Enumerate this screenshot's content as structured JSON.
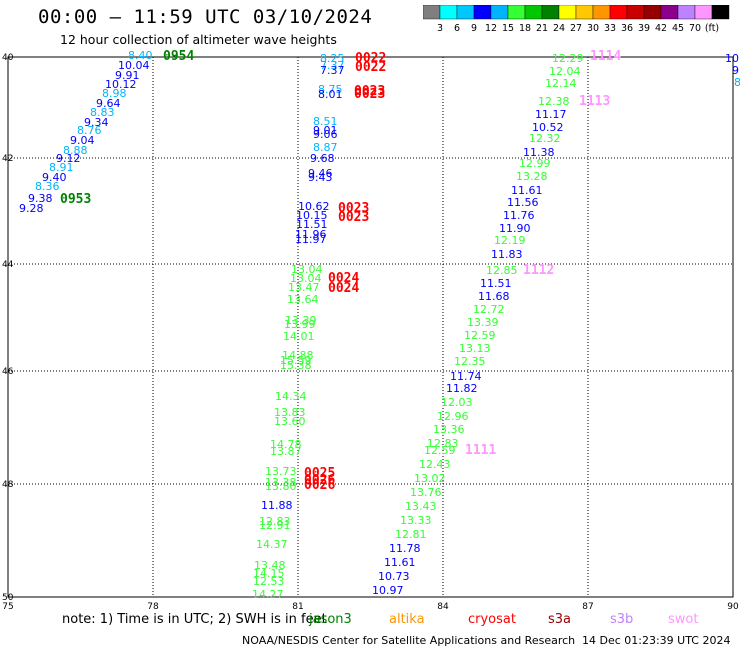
{
  "header": {
    "title": "00:00 – 11:59 UTC 03/10/2024",
    "subtitle": "12 hour collection of altimeter wave heights"
  },
  "colorbar": {
    "colors": [
      "#7f7f7f",
      "#00ffff",
      "#00c8ff",
      "#0000ff",
      "#00b4ff",
      "#33ff33",
      "#00c800",
      "#008200",
      "#ffff00",
      "#ffc800",
      "#ff9600",
      "#ff0000",
      "#c80000",
      "#960000",
      "#8c008c",
      "#be82ff",
      "#ff96ff",
      "#000000"
    ],
    "labels": [
      "3",
      "6",
      "9",
      "12",
      "15",
      "18",
      "21",
      "24",
      "27",
      "30",
      "33",
      "36",
      "39",
      "42",
      "45",
      "70",
      "(ft)"
    ]
  },
  "axes": {
    "lon_labels": [
      "75",
      "78",
      "81",
      "84",
      "87",
      "90"
    ],
    "lat_labels": [
      "40",
      "42",
      "44",
      "46",
      "48",
      "50"
    ]
  },
  "passes": [
    {
      "label": "0954",
      "color": "#008200"
    },
    {
      "label": "0953",
      "color": "#008200"
    },
    {
      "label": "0022",
      "color": "#ff0000"
    },
    {
      "label": "0022",
      "color": "#ff0000"
    },
    {
      "label": "0023",
      "color": "#ff0000"
    },
    {
      "label": "0023",
      "color": "#ff0000"
    },
    {
      "label": "0023",
      "color": "#ff0000"
    },
    {
      "label": "0023",
      "color": "#ff0000"
    },
    {
      "label": "0024",
      "color": "#ff0000"
    },
    {
      "label": "0024",
      "color": "#ff0000"
    },
    {
      "label": "0025",
      "color": "#ff0000"
    },
    {
      "label": "0026",
      "color": "#ff0000"
    },
    {
      "label": "0026",
      "color": "#ff0000"
    },
    {
      "label": "1114",
      "color": "#ff96ff"
    },
    {
      "label": "1113",
      "color": "#ff96ff"
    },
    {
      "label": "1112",
      "color": "#ff96ff"
    },
    {
      "label": "1111",
      "color": "#ff96ff"
    }
  ],
  "wave_heights": [
    {
      "v": "8.40",
      "c": "#00b4ff"
    },
    {
      "v": "10.04",
      "c": "#0000ff"
    },
    {
      "v": "9.91",
      "c": "#0000ff"
    },
    {
      "v": "10.12",
      "c": "#0000ff"
    },
    {
      "v": "8.98",
      "c": "#00b4ff"
    },
    {
      "v": "9.64",
      "c": "#0000ff"
    },
    {
      "v": "8.83",
      "c": "#00b4ff"
    },
    {
      "v": "9.34",
      "c": "#0000ff"
    },
    {
      "v": "8.76",
      "c": "#00b4ff"
    },
    {
      "v": "9.04",
      "c": "#0000ff"
    },
    {
      "v": "8.88",
      "c": "#00b4ff"
    },
    {
      "v": "9.12",
      "c": "#0000ff"
    },
    {
      "v": "8.91",
      "c": "#00b4ff"
    },
    {
      "v": "9.40",
      "c": "#0000ff"
    },
    {
      "v": "8.36",
      "c": "#00b4ff"
    },
    {
      "v": "9.38",
      "c": "#0000ff"
    },
    {
      "v": "9.28",
      "c": "#0000ff"
    },
    {
      "v": "8.25",
      "c": "#00b4ff"
    },
    {
      "v": "7.37",
      "c": "#00b4ff"
    },
    {
      "v": "7.37",
      "c": "#0000ff"
    },
    {
      "v": "8.75",
      "c": "#00b4ff"
    },
    {
      "v": "8.01",
      "c": "#0000ff"
    },
    {
      "v": "8.51",
      "c": "#00b4ff"
    },
    {
      "v": "9.01",
      "c": "#0000ff"
    },
    {
      "v": "9.06",
      "c": "#0000ff"
    },
    {
      "v": "8.87",
      "c": "#00b4ff"
    },
    {
      "v": "9.68",
      "c": "#0000ff"
    },
    {
      "v": "9.46",
      "c": "#0000ff"
    },
    {
      "v": "9.43",
      "c": "#0000ff"
    },
    {
      "v": "10.62",
      "c": "#0000ff"
    },
    {
      "v": "10.15",
      "c": "#0000ff"
    },
    {
      "v": "11.51",
      "c": "#0000ff"
    },
    {
      "v": "11.96",
      "c": "#0000ff"
    },
    {
      "v": "11.97",
      "c": "#0000ff"
    },
    {
      "v": "13.04",
      "c": "#33ff33"
    },
    {
      "v": "13.04",
      "c": "#33ff33"
    },
    {
      "v": "13.47",
      "c": "#33ff33"
    },
    {
      "v": "13.64",
      "c": "#33ff33"
    },
    {
      "v": "13.39",
      "c": "#33ff33"
    },
    {
      "v": "13.99",
      "c": "#33ff33"
    },
    {
      "v": "14.01",
      "c": "#33ff33"
    },
    {
      "v": "14.88",
      "c": "#33ff33"
    },
    {
      "v": "15.59",
      "c": "#33ff33"
    },
    {
      "v": "15.38",
      "c": "#33ff33"
    },
    {
      "v": "14.34",
      "c": "#33ff33"
    },
    {
      "v": "13.83",
      "c": "#33ff33"
    },
    {
      "v": "13.60",
      "c": "#33ff33"
    },
    {
      "v": "14.78",
      "c": "#33ff33"
    },
    {
      "v": "13.87",
      "c": "#33ff33"
    },
    {
      "v": "13.73",
      "c": "#33ff33"
    },
    {
      "v": "13.38",
      "c": "#33ff33"
    },
    {
      "v": "13.80",
      "c": "#33ff33"
    },
    {
      "v": "11.88",
      "c": "#0000ff"
    },
    {
      "v": "12.83",
      "c": "#33ff33"
    },
    {
      "v": "12.91",
      "c": "#33ff33"
    },
    {
      "v": "14.37",
      "c": "#33ff33"
    },
    {
      "v": "13.48",
      "c": "#33ff33"
    },
    {
      "v": "14.15",
      "c": "#33ff33"
    },
    {
      "v": "12.53",
      "c": "#33ff33"
    },
    {
      "v": "14.27",
      "c": "#33ff33"
    },
    {
      "v": "12.29",
      "c": "#33ff33"
    },
    {
      "v": "12.04",
      "c": "#33ff33"
    },
    {
      "v": "12.14",
      "c": "#33ff33"
    },
    {
      "v": "12.38",
      "c": "#33ff33"
    },
    {
      "v": "11.17",
      "c": "#0000ff"
    },
    {
      "v": "10.52",
      "c": "#0000ff"
    },
    {
      "v": "12.32",
      "c": "#33ff33"
    },
    {
      "v": "11.38",
      "c": "#0000ff"
    },
    {
      "v": "12.99",
      "c": "#33ff33"
    },
    {
      "v": "13.28",
      "c": "#33ff33"
    },
    {
      "v": "11.61",
      "c": "#0000ff"
    },
    {
      "v": "11.56",
      "c": "#0000ff"
    },
    {
      "v": "11.76",
      "c": "#0000ff"
    },
    {
      "v": "11.90",
      "c": "#0000ff"
    },
    {
      "v": "12.19",
      "c": "#33ff33"
    },
    {
      "v": "11.83",
      "c": "#0000ff"
    },
    {
      "v": "12.85",
      "c": "#33ff33"
    },
    {
      "v": "11.51",
      "c": "#0000ff"
    },
    {
      "v": "11.68",
      "c": "#0000ff"
    },
    {
      "v": "12.72",
      "c": "#33ff33"
    },
    {
      "v": "13.39",
      "c": "#33ff33"
    },
    {
      "v": "12.59",
      "c": "#33ff33"
    },
    {
      "v": "13.13",
      "c": "#33ff33"
    },
    {
      "v": "12.35",
      "c": "#33ff33"
    },
    {
      "v": "11.74",
      "c": "#0000ff"
    },
    {
      "v": "11.82",
      "c": "#0000ff"
    },
    {
      "v": "12.03",
      "c": "#33ff33"
    },
    {
      "v": "12.96",
      "c": "#33ff33"
    },
    {
      "v": "13.36",
      "c": "#33ff33"
    },
    {
      "v": "12.83",
      "c": "#33ff33"
    },
    {
      "v": "12.59",
      "c": "#33ff33"
    },
    {
      "v": "12.43",
      "c": "#33ff33"
    },
    {
      "v": "13.02",
      "c": "#33ff33"
    },
    {
      "v": "13.76",
      "c": "#33ff33"
    },
    {
      "v": "13.43",
      "c": "#33ff33"
    },
    {
      "v": "13.33",
      "c": "#33ff33"
    },
    {
      "v": "12.81",
      "c": "#33ff33"
    },
    {
      "v": "11.78",
      "c": "#0000ff"
    },
    {
      "v": "11.61",
      "c": "#0000ff"
    },
    {
      "v": "10.73",
      "c": "#0000ff"
    },
    {
      "v": "10.97",
      "c": "#0000ff"
    },
    {
      "v": "10",
      "c": "#0000ff"
    },
    {
      "v": "9",
      "c": "#0000ff"
    },
    {
      "v": "8",
      "c": "#00b4ff"
    }
  ],
  "footer": {
    "note": "note:  1) Time is in UTC; 2) SWH is in feet",
    "satellites": [
      {
        "name": "jason3",
        "color": "#008200"
      },
      {
        "name": "altika",
        "color": "#ff9600"
      },
      {
        "name": "cryosat",
        "color": "#ff0000"
      },
      {
        "name": "s3a",
        "color": "#960000"
      },
      {
        "name": "s3b",
        "color": "#be82ff"
      },
      {
        "name": "swot",
        "color": "#ff96ff"
      }
    ],
    "credit": "NOAA/NESDIS Center for Satellite Applications and Research",
    "timestamp": "14 Dec 01:23:39 UTC 2024"
  }
}
